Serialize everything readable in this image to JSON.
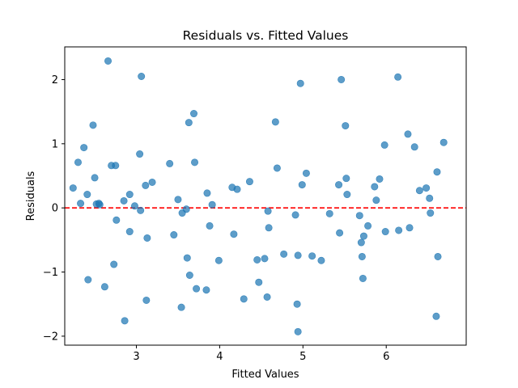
{
  "chart_data": {
    "type": "scatter",
    "title": "Residuals vs. Fitted Values",
    "xlabel": "Fitted Values",
    "ylabel": "Residuals",
    "xlim": [
      2.14,
      6.96
    ],
    "ylim": [
      -2.14,
      2.51
    ],
    "xticks": [
      3,
      4,
      5,
      6
    ],
    "yticks": [
      -2,
      -1,
      0,
      1,
      2
    ],
    "grid": false,
    "point_color": "#1f77b4",
    "reference_line": {
      "y": 0,
      "color": "#ff0000",
      "style": "dashed"
    },
    "points": [
      {
        "x": 2.24,
        "y": 0.31
      },
      {
        "x": 2.3,
        "y": 0.71
      },
      {
        "x": 2.33,
        "y": 0.07
      },
      {
        "x": 2.37,
        "y": 0.94
      },
      {
        "x": 2.41,
        "y": 0.21
      },
      {
        "x": 2.42,
        "y": -1.12
      },
      {
        "x": 2.48,
        "y": 1.29
      },
      {
        "x": 2.5,
        "y": 0.47
      },
      {
        "x": 2.52,
        "y": 0.06
      },
      {
        "x": 2.55,
        "y": 0.07
      },
      {
        "x": 2.56,
        "y": 0.05
      },
      {
        "x": 2.62,
        "y": -1.23
      },
      {
        "x": 2.66,
        "y": 2.29
      },
      {
        "x": 2.7,
        "y": 0.66
      },
      {
        "x": 2.73,
        "y": -0.88
      },
      {
        "x": 2.75,
        "y": 0.66
      },
      {
        "x": 2.76,
        "y": -0.19
      },
      {
        "x": 2.85,
        "y": 0.11
      },
      {
        "x": 2.86,
        "y": -1.76
      },
      {
        "x": 2.92,
        "y": 0.21
      },
      {
        "x": 2.92,
        "y": -0.37
      },
      {
        "x": 2.98,
        "y": 0.03
      },
      {
        "x": 3.04,
        "y": 0.84
      },
      {
        "x": 3.05,
        "y": -0.04
      },
      {
        "x": 3.06,
        "y": 2.05
      },
      {
        "x": 3.11,
        "y": 0.35
      },
      {
        "x": 3.12,
        "y": -1.44
      },
      {
        "x": 3.13,
        "y": -0.47
      },
      {
        "x": 3.19,
        "y": 0.4
      },
      {
        "x": 3.4,
        "y": 0.69
      },
      {
        "x": 3.45,
        "y": -0.42
      },
      {
        "x": 3.5,
        "y": 0.13
      },
      {
        "x": 3.54,
        "y": -1.55
      },
      {
        "x": 3.55,
        "y": -0.08
      },
      {
        "x": 3.6,
        "y": -0.02
      },
      {
        "x": 3.61,
        "y": -0.78
      },
      {
        "x": 3.63,
        "y": 1.33
      },
      {
        "x": 3.64,
        "y": -1.05
      },
      {
        "x": 3.69,
        "y": 1.47
      },
      {
        "x": 3.7,
        "y": 0.71
      },
      {
        "x": 3.72,
        "y": -1.26
      },
      {
        "x": 3.84,
        "y": -1.28
      },
      {
        "x": 3.85,
        "y": 0.23
      },
      {
        "x": 3.88,
        "y": -0.28
      },
      {
        "x": 3.91,
        "y": 0.05
      },
      {
        "x": 3.99,
        "y": -0.82
      },
      {
        "x": 4.15,
        "y": 0.32
      },
      {
        "x": 4.17,
        "y": -0.41
      },
      {
        "x": 4.21,
        "y": 0.29
      },
      {
        "x": 4.29,
        "y": -1.42
      },
      {
        "x": 4.36,
        "y": 0.41
      },
      {
        "x": 4.45,
        "y": -0.81
      },
      {
        "x": 4.47,
        "y": -1.16
      },
      {
        "x": 4.54,
        "y": -0.79
      },
      {
        "x": 4.57,
        "y": -1.39
      },
      {
        "x": 4.58,
        "y": -0.05
      },
      {
        "x": 4.59,
        "y": -0.31
      },
      {
        "x": 4.67,
        "y": 1.34
      },
      {
        "x": 4.69,
        "y": 0.62
      },
      {
        "x": 4.77,
        "y": -0.72
      },
      {
        "x": 4.91,
        "y": -0.11
      },
      {
        "x": 4.93,
        "y": -1.5
      },
      {
        "x": 4.94,
        "y": -0.74
      },
      {
        "x": 4.94,
        "y": -1.93
      },
      {
        "x": 4.97,
        "y": 1.94
      },
      {
        "x": 4.99,
        "y": 0.36
      },
      {
        "x": 5.04,
        "y": 0.54
      },
      {
        "x": 5.11,
        "y": -0.75
      },
      {
        "x": 5.22,
        "y": -0.82
      },
      {
        "x": 5.32,
        "y": -0.09
      },
      {
        "x": 5.43,
        "y": 0.36
      },
      {
        "x": 5.44,
        "y": -0.39
      },
      {
        "x": 5.46,
        "y": 2.0
      },
      {
        "x": 5.51,
        "y": 1.28
      },
      {
        "x": 5.52,
        "y": 0.46
      },
      {
        "x": 5.53,
        "y": 0.21
      },
      {
        "x": 5.68,
        "y": -0.12
      },
      {
        "x": 5.7,
        "y": -0.54
      },
      {
        "x": 5.71,
        "y": -0.76
      },
      {
        "x": 5.72,
        "y": -1.1
      },
      {
        "x": 5.73,
        "y": -0.44
      },
      {
        "x": 5.78,
        "y": -0.28
      },
      {
        "x": 5.86,
        "y": 0.33
      },
      {
        "x": 5.88,
        "y": 0.12
      },
      {
        "x": 5.92,
        "y": 0.45
      },
      {
        "x": 5.98,
        "y": 0.98
      },
      {
        "x": 5.99,
        "y": -0.37
      },
      {
        "x": 6.14,
        "y": 2.04
      },
      {
        "x": 6.15,
        "y": -0.35
      },
      {
        "x": 6.26,
        "y": 1.15
      },
      {
        "x": 6.28,
        "y": -0.31
      },
      {
        "x": 6.34,
        "y": 0.95
      },
      {
        "x": 6.4,
        "y": 0.27
      },
      {
        "x": 6.48,
        "y": 0.31
      },
      {
        "x": 6.52,
        "y": 0.15
      },
      {
        "x": 6.53,
        "y": -0.08
      },
      {
        "x": 6.6,
        "y": -1.69
      },
      {
        "x": 6.61,
        "y": 0.56
      },
      {
        "x": 6.62,
        "y": -0.76
      },
      {
        "x": 6.69,
        "y": 1.02
      }
    ]
  }
}
